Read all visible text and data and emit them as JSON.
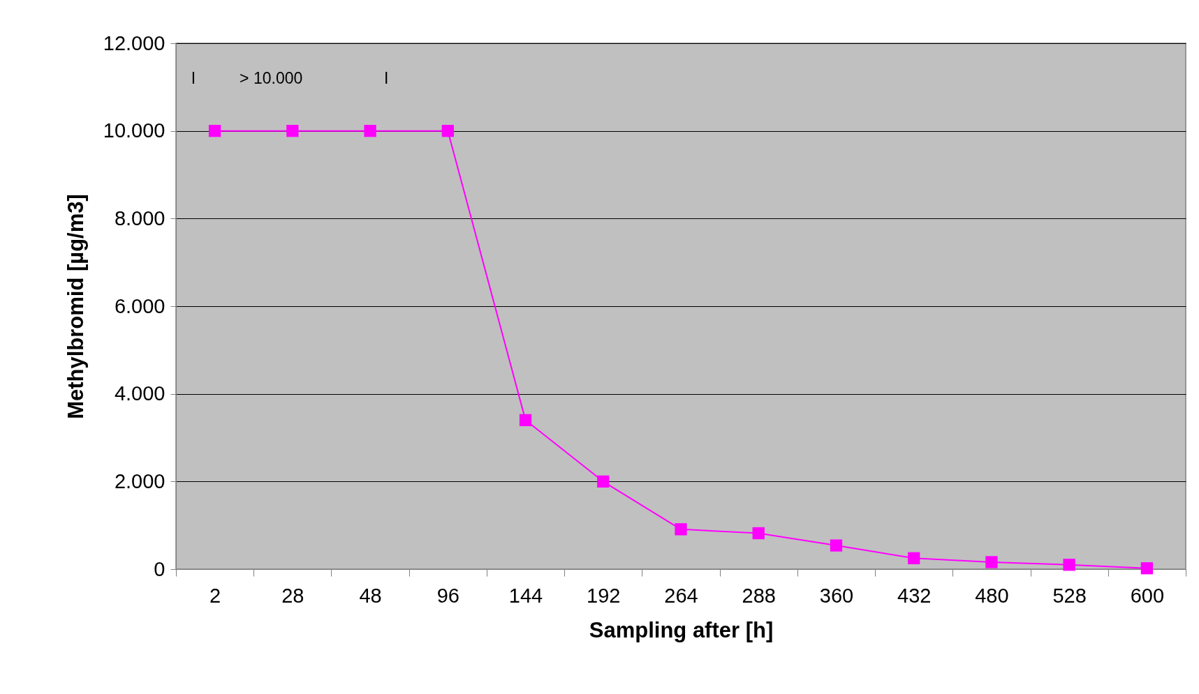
{
  "chart_data": {
    "type": "line",
    "xlabel": "Sampling after [h]",
    "ylabel": "Methylbromid [µg/m3]",
    "categories": [
      "2",
      "28",
      "48",
      "96",
      "144",
      "192",
      "264",
      "288",
      "360",
      "432",
      "480",
      "528",
      "600"
    ],
    "series": [
      {
        "color": "#ff00ff",
        "values": [
          10000,
          10000,
          10000,
          10000,
          3400,
          2000,
          910,
          820,
          540,
          250,
          160,
          100,
          20
        ]
      }
    ],
    "ylim": [
      0,
      12000
    ],
    "yticks": [
      {
        "value": 0,
        "label": "0"
      },
      {
        "value": 2000,
        "label": "2.000"
      },
      {
        "value": 4000,
        "label": "4.000"
      },
      {
        "value": 6000,
        "label": "6.000"
      },
      {
        "value": 8000,
        "label": "8.000"
      },
      {
        "value": 10000,
        "label": "10.000"
      },
      {
        "value": 12000,
        "label": "12.000"
      }
    ],
    "annotations": [
      "I",
      "> 10.000",
      "I"
    ],
    "grid": "y",
    "marker": "square",
    "line_style": "solid"
  }
}
